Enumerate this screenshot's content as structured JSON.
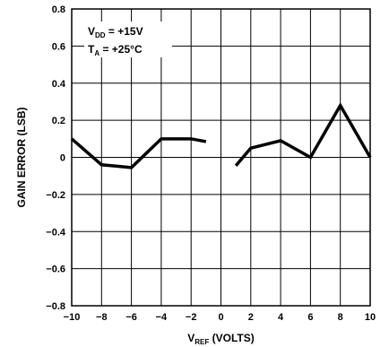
{
  "chart_data": {
    "type": "line",
    "title": "",
    "xlabel": "V",
    "xlabel_sub": "REF",
    "xlabel_suffix": " (VOLTS)",
    "ylabel": "GAIN ERROR (LSB)",
    "xlim": [
      -10,
      10
    ],
    "ylim": [
      -0.8,
      0.8
    ],
    "x_ticks": [
      -10,
      -8,
      -6,
      -4,
      -2,
      0,
      2,
      4,
      6,
      8,
      10
    ],
    "x_tick_labels": [
      "−10",
      "−8",
      "−6",
      "−4",
      "−2",
      "0",
      "2",
      "4",
      "6",
      "8",
      "10"
    ],
    "y_ticks": [
      0.8,
      0.6,
      0.4,
      0.2,
      0,
      -0.2,
      -0.4,
      -0.6,
      -0.8
    ],
    "y_tick_labels": [
      "0.8",
      "0.6",
      "0.4",
      "0.2",
      "0",
      "−0.2",
      "−0.4",
      "−0.6",
      "−0.8"
    ],
    "grid": true,
    "annotations": {
      "line1": {
        "main": "V",
        "sub": "DD",
        "rest": " = +15V"
      },
      "line2": {
        "main": "T",
        "sub": "A",
        "rest": " = +25°C"
      }
    },
    "series": [
      {
        "segments": [
          {
            "x": [
              -10,
              -8,
              -6,
              -4,
              -2,
              -1
            ],
            "y": [
              0.1,
              -0.04,
              -0.055,
              0.1,
              0.1,
              0.085
            ]
          },
          {
            "x": [
              1,
              2,
              4,
              6,
              8,
              10
            ],
            "y": [
              -0.045,
              0.05,
              0.09,
              0.0,
              0.28,
              0.0
            ]
          }
        ]
      }
    ]
  }
}
